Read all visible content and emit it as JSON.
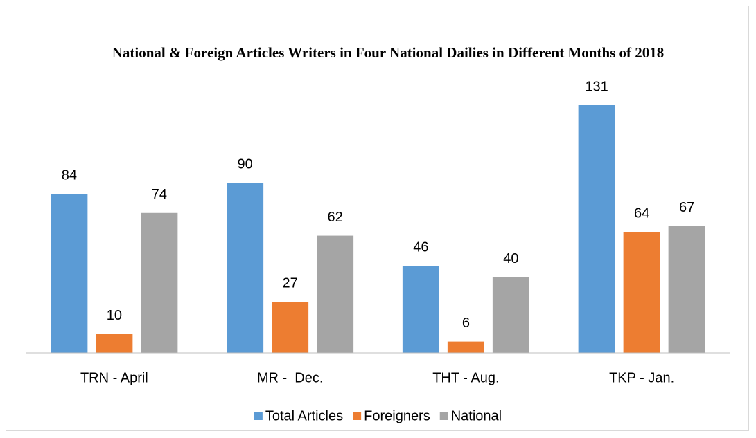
{
  "chart_data": {
    "type": "bar",
    "title": "National & Foreign Articles Writers in Four National Dailies in Different Months of 2018",
    "categories": [
      "TRN - April",
      "MR -  Dec.",
      "THT - Aug.",
      "TKP - Jan."
    ],
    "series": [
      {
        "name": "Total Articles",
        "color": "#5b9bd5",
        "values": [
          84,
          90,
          46,
          131
        ]
      },
      {
        "name": "Foreigners",
        "color": "#ed7d31",
        "values": [
          10,
          27,
          6,
          64
        ]
      },
      {
        "name": "National",
        "color": "#a5a5a5",
        "values": [
          74,
          62,
          40,
          67
        ]
      }
    ],
    "legend": "bottom"
  }
}
